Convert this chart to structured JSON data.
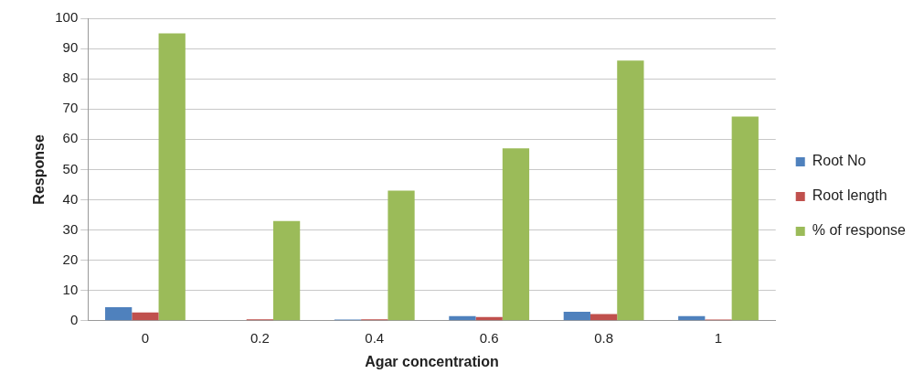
{
  "chart_data": {
    "type": "bar",
    "xlabel": "Agar concentration",
    "ylabel": "Response",
    "categories": [
      "0",
      "0.2",
      "0.4",
      "0.6",
      "0.8",
      "1"
    ],
    "series": [
      {
        "name": "Root No",
        "color": "#4f81bd",
        "values": [
          4.5,
          0,
          0.4,
          1.5,
          3,
          1.5
        ]
      },
      {
        "name": "Root length",
        "color": "#c0504d",
        "values": [
          2.7,
          0.5,
          0.5,
          1.2,
          2.2,
          0.4
        ]
      },
      {
        "name": "% of response",
        "color": "#9bbb59",
        "values": [
          95,
          33,
          43,
          57,
          86,
          67.5
        ]
      }
    ],
    "ylim": [
      0,
      100
    ],
    "yticks": [
      0,
      10,
      20,
      30,
      40,
      50,
      60,
      70,
      80,
      90,
      100
    ],
    "grid": "y",
    "legend": "right"
  }
}
